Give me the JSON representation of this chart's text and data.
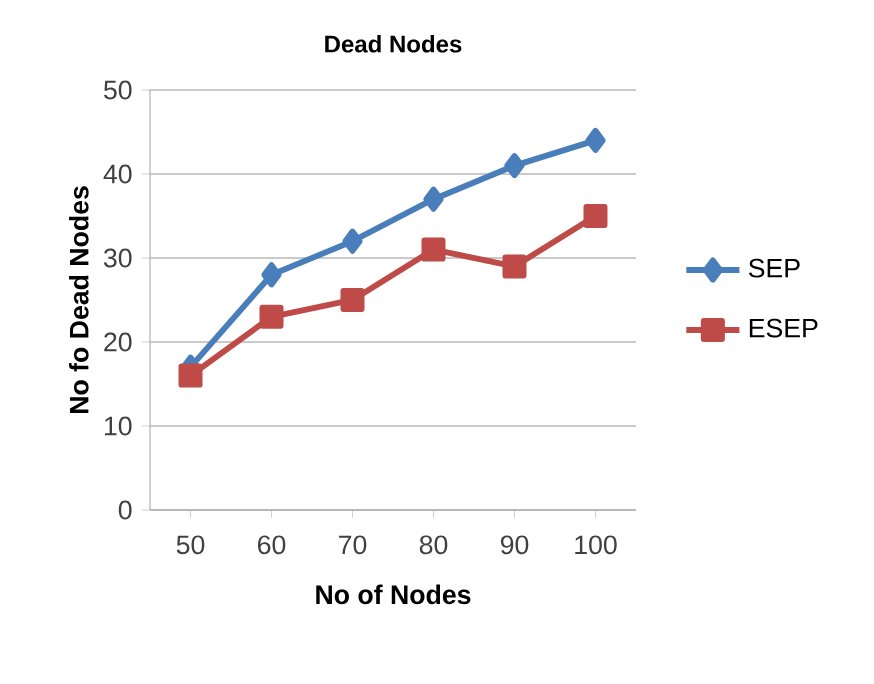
{
  "chart_data": {
    "type": "line",
    "title": "Dead Nodes",
    "xlabel": "No of Nodes",
    "ylabel": "No fo Dead Nodes",
    "categories": [
      "50",
      "60",
      "70",
      "80",
      "90",
      "100"
    ],
    "series": [
      {
        "name": "SEP",
        "color": "#4a7ebb",
        "marker": "diamond",
        "values": [
          17,
          28,
          32,
          37,
          41,
          44
        ]
      },
      {
        "name": "ESEP",
        "color": "#be4b48",
        "marker": "square",
        "values": [
          16,
          23,
          25,
          31,
          29,
          35
        ]
      }
    ],
    "ylim": [
      0,
      50
    ],
    "yticks": [
      0,
      10,
      20,
      30,
      40,
      50
    ],
    "grid": "y",
    "legend": "right",
    "line_style": "solid"
  }
}
